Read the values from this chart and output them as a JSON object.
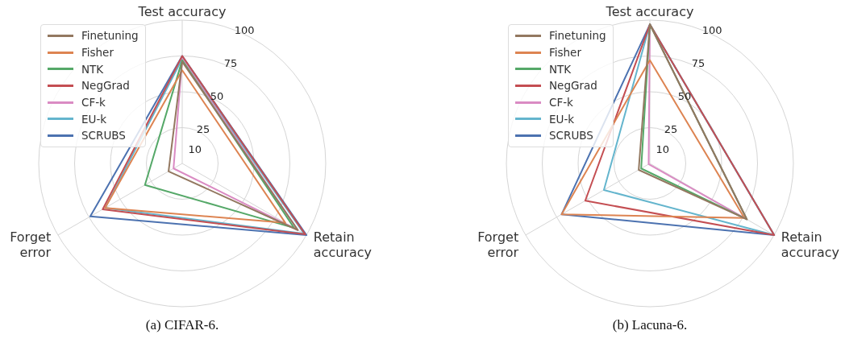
{
  "chart_data": [
    {
      "type": "radar",
      "title": "(a) CIFAR-6.",
      "categories": [
        "Test accuracy",
        "Retain accuracy",
        "Forget error"
      ],
      "ylim": [
        0,
        100
      ],
      "yticks": [
        10,
        25,
        50,
        75,
        100
      ],
      "legend": "top left",
      "grid": true,
      "marker": "none",
      "series": [
        {
          "name": "Finetuning",
          "color": "#937860",
          "values": [
            71,
            93,
            11
          ]
        },
        {
          "name": "Fisher",
          "color": "#dd8452",
          "values": [
            65,
            83,
            62
          ]
        },
        {
          "name": "NTK",
          "color": "#55a868",
          "values": [
            72,
            90,
            30
          ]
        },
        {
          "name": "NegGrad",
          "color": "#c44e52",
          "values": [
            75,
            99,
            64
          ]
        },
        {
          "name": "CF-k",
          "color": "#da8bc3",
          "values": [
            73,
            93,
            7
          ]
        },
        {
          "name": "EU-k",
          "color": "#64b5cd",
          "values": [
            73,
            98,
            62
          ]
        },
        {
          "name": "SCRUBS",
          "color": "#4c72b0",
          "values": [
            75,
            100,
            74
          ]
        }
      ]
    },
    {
      "type": "radar",
      "title": "(b) Lacuna-6.",
      "categories": [
        "Test accuracy",
        "Retain accuracy",
        "Forget error"
      ],
      "ylim": [
        0,
        100
      ],
      "yticks": [
        10,
        25,
        50,
        75,
        100
      ],
      "legend": "top left",
      "grid": true,
      "marker": "none",
      "series": [
        {
          "name": "Finetuning",
          "color": "#937860",
          "values": [
            97,
            78,
            9
          ]
        },
        {
          "name": "Fisher",
          "color": "#dd8452",
          "values": [
            72,
            76,
            71
          ]
        },
        {
          "name": "NTK",
          "color": "#55a868",
          "values": [
            97,
            78,
            7
          ]
        },
        {
          "name": "NegGrad",
          "color": "#c44e52",
          "values": [
            97,
            100,
            52
          ]
        },
        {
          "name": "CF-k",
          "color": "#da8bc3",
          "values": [
            97,
            78,
            1
          ]
        },
        {
          "name": "EU-k",
          "color": "#64b5cd",
          "values": [
            97,
            100,
            37
          ]
        },
        {
          "name": "SCRUBS",
          "color": "#4c72b0",
          "values": [
            97,
            100,
            71
          ]
        }
      ]
    }
  ]
}
